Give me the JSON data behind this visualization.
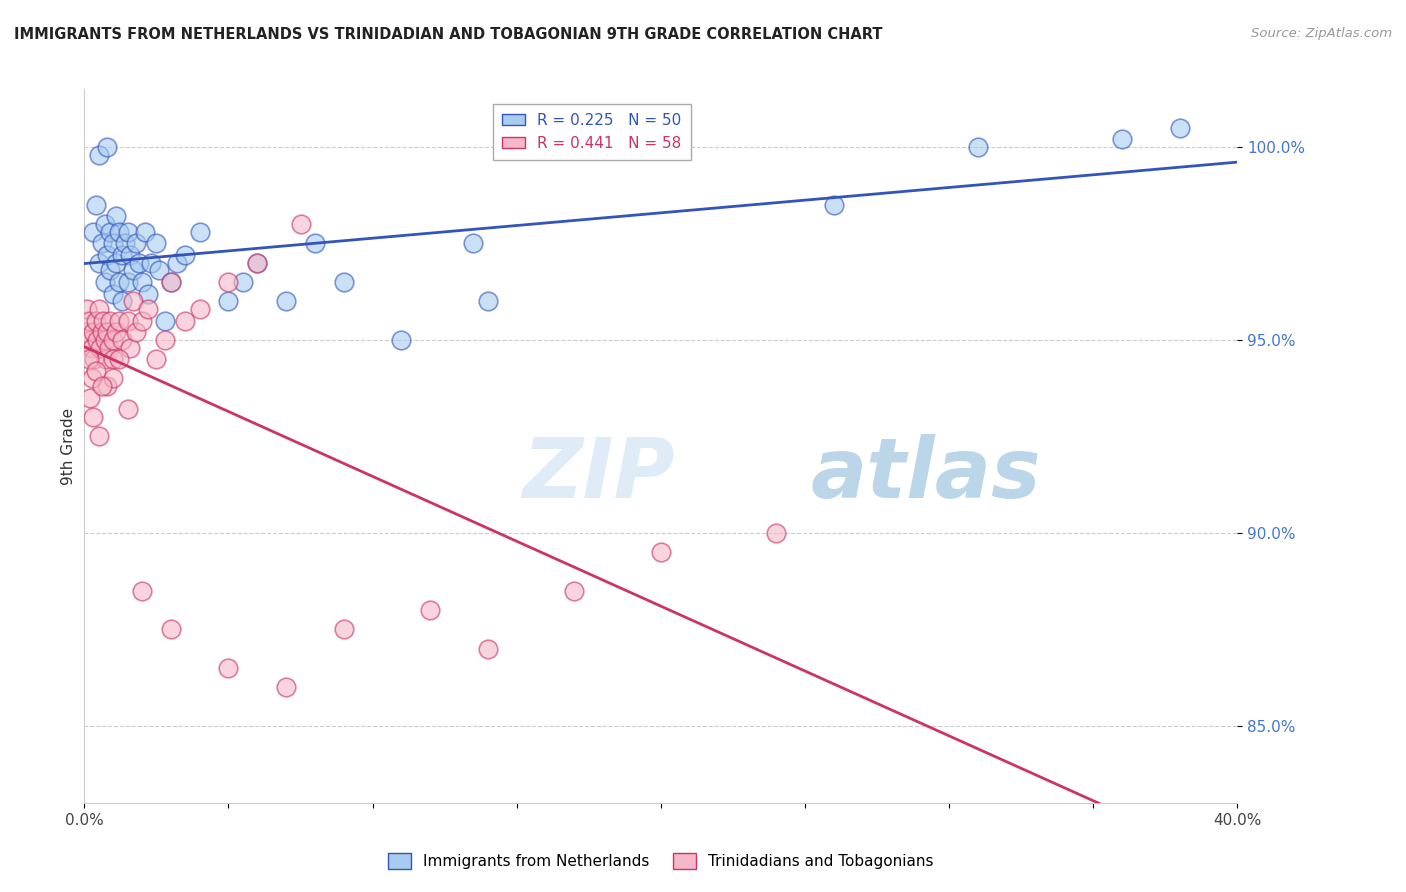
{
  "title": "IMMIGRANTS FROM NETHERLANDS VS TRINIDADIAN AND TOBAGONIAN 9TH GRADE CORRELATION CHART",
  "source": "Source: ZipAtlas.com",
  "ylabel": "9th Grade",
  "xlim": [
    0.0,
    40.0
  ],
  "ylim": [
    83.0,
    101.5
  ],
  "yticks": [
    85.0,
    90.0,
    95.0,
    100.0
  ],
  "ytick_labels": [
    "85.0%",
    "90.0%",
    "95.0%",
    "100.0%"
  ],
  "xticks": [
    0.0,
    5.0,
    10.0,
    15.0,
    20.0,
    25.0,
    30.0,
    35.0,
    40.0
  ],
  "xtick_labels": [
    "0.0%",
    "",
    "",
    "",
    "",
    "",
    "",
    "",
    "40.0%"
  ],
  "blue_R": 0.225,
  "blue_N": 50,
  "pink_R": 0.441,
  "pink_N": 58,
  "blue_label": "Immigrants from Netherlands",
  "pink_label": "Trinidadians and Tobagonians",
  "blue_color": "#A8CCF0",
  "blue_line_color": "#3355BB",
  "pink_color": "#F5B8C8",
  "pink_line_color": "#CC3366",
  "watermark_zip": "ZIP",
  "watermark_atlas": "atlas",
  "blue_scatter_x": [
    0.3,
    0.4,
    0.5,
    0.5,
    0.6,
    0.7,
    0.7,
    0.8,
    0.8,
    0.9,
    0.9,
    1.0,
    1.0,
    1.1,
    1.1,
    1.2,
    1.2,
    1.3,
    1.3,
    1.4,
    1.5,
    1.5,
    1.6,
    1.7,
    1.8,
    1.9,
    2.0,
    2.1,
    2.2,
    2.3,
    2.5,
    2.6,
    2.8,
    3.0,
    3.2,
    3.5,
    4.0,
    5.0,
    5.5,
    6.0,
    7.0,
    8.0,
    9.0,
    11.0,
    13.5,
    14.0,
    26.0,
    31.0,
    36.0,
    38.0
  ],
  "blue_scatter_y": [
    97.8,
    98.5,
    97.0,
    99.8,
    97.5,
    98.0,
    96.5,
    97.2,
    100.0,
    97.8,
    96.8,
    97.5,
    96.2,
    97.0,
    98.2,
    96.5,
    97.8,
    97.2,
    96.0,
    97.5,
    97.8,
    96.5,
    97.2,
    96.8,
    97.5,
    97.0,
    96.5,
    97.8,
    96.2,
    97.0,
    97.5,
    96.8,
    95.5,
    96.5,
    97.0,
    97.2,
    97.8,
    96.0,
    96.5,
    97.0,
    96.0,
    97.5,
    96.5,
    95.0,
    97.5,
    96.0,
    98.5,
    100.0,
    100.2,
    100.5
  ],
  "pink_scatter_x": [
    0.05,
    0.1,
    0.15,
    0.2,
    0.25,
    0.3,
    0.35,
    0.4,
    0.45,
    0.5,
    0.55,
    0.6,
    0.65,
    0.7,
    0.75,
    0.8,
    0.85,
    0.9,
    1.0,
    1.0,
    1.1,
    1.2,
    1.3,
    1.5,
    1.6,
    1.7,
    1.8,
    2.0,
    2.2,
    2.5,
    2.8,
    3.0,
    3.5,
    4.0,
    5.0,
    6.0,
    7.5,
    0.2,
    0.3,
    0.5,
    0.8,
    1.0,
    1.5,
    2.0,
    3.0,
    5.0,
    7.0,
    9.0,
    12.0,
    14.0,
    17.0,
    20.0,
    24.0,
    0.15,
    0.25,
    0.4,
    0.6,
    1.2
  ],
  "pink_scatter_y": [
    95.2,
    95.8,
    95.5,
    95.0,
    94.8,
    95.2,
    94.5,
    95.5,
    95.0,
    95.8,
    94.8,
    95.2,
    95.5,
    95.0,
    94.5,
    95.2,
    94.8,
    95.5,
    95.0,
    94.5,
    95.2,
    95.5,
    95.0,
    95.5,
    94.8,
    96.0,
    95.2,
    95.5,
    95.8,
    94.5,
    95.0,
    96.5,
    95.5,
    95.8,
    96.5,
    97.0,
    98.0,
    93.5,
    93.0,
    92.5,
    93.8,
    94.0,
    93.2,
    88.5,
    87.5,
    86.5,
    86.0,
    87.5,
    88.0,
    87.0,
    88.5,
    89.5,
    90.0,
    94.5,
    94.0,
    94.2,
    93.8,
    94.5
  ]
}
